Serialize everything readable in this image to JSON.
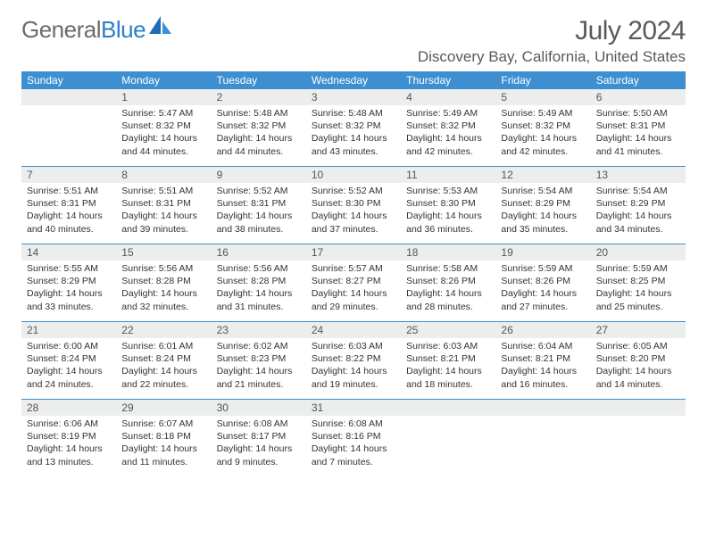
{
  "brand": {
    "part1": "General",
    "part2": "Blue"
  },
  "title": "July 2024",
  "location": "Discovery Bay, California, United States",
  "colors": {
    "header_bg": "#3d8fd1",
    "header_text": "#ffffff",
    "daynum_bg": "#eceded",
    "rule": "#3d8fd1",
    "text": "#333333",
    "title_text": "#5a5a5a",
    "logo_grey": "#6b6b6b",
    "logo_blue": "#2a7fc9"
  },
  "day_names": [
    "Sunday",
    "Monday",
    "Tuesday",
    "Wednesday",
    "Thursday",
    "Friday",
    "Saturday"
  ],
  "weeks": [
    [
      {
        "n": "",
        "sr": "",
        "ss": "",
        "dl": ""
      },
      {
        "n": "1",
        "sr": "5:47 AM",
        "ss": "8:32 PM",
        "dl": "14 hours and 44 minutes."
      },
      {
        "n": "2",
        "sr": "5:48 AM",
        "ss": "8:32 PM",
        "dl": "14 hours and 44 minutes."
      },
      {
        "n": "3",
        "sr": "5:48 AM",
        "ss": "8:32 PM",
        "dl": "14 hours and 43 minutes."
      },
      {
        "n": "4",
        "sr": "5:49 AM",
        "ss": "8:32 PM",
        "dl": "14 hours and 42 minutes."
      },
      {
        "n": "5",
        "sr": "5:49 AM",
        "ss": "8:32 PM",
        "dl": "14 hours and 42 minutes."
      },
      {
        "n": "6",
        "sr": "5:50 AM",
        "ss": "8:31 PM",
        "dl": "14 hours and 41 minutes."
      }
    ],
    [
      {
        "n": "7",
        "sr": "5:51 AM",
        "ss": "8:31 PM",
        "dl": "14 hours and 40 minutes."
      },
      {
        "n": "8",
        "sr": "5:51 AM",
        "ss": "8:31 PM",
        "dl": "14 hours and 39 minutes."
      },
      {
        "n": "9",
        "sr": "5:52 AM",
        "ss": "8:31 PM",
        "dl": "14 hours and 38 minutes."
      },
      {
        "n": "10",
        "sr": "5:52 AM",
        "ss": "8:30 PM",
        "dl": "14 hours and 37 minutes."
      },
      {
        "n": "11",
        "sr": "5:53 AM",
        "ss": "8:30 PM",
        "dl": "14 hours and 36 minutes."
      },
      {
        "n": "12",
        "sr": "5:54 AM",
        "ss": "8:29 PM",
        "dl": "14 hours and 35 minutes."
      },
      {
        "n": "13",
        "sr": "5:54 AM",
        "ss": "8:29 PM",
        "dl": "14 hours and 34 minutes."
      }
    ],
    [
      {
        "n": "14",
        "sr": "5:55 AM",
        "ss": "8:29 PM",
        "dl": "14 hours and 33 minutes."
      },
      {
        "n": "15",
        "sr": "5:56 AM",
        "ss": "8:28 PM",
        "dl": "14 hours and 32 minutes."
      },
      {
        "n": "16",
        "sr": "5:56 AM",
        "ss": "8:28 PM",
        "dl": "14 hours and 31 minutes."
      },
      {
        "n": "17",
        "sr": "5:57 AM",
        "ss": "8:27 PM",
        "dl": "14 hours and 29 minutes."
      },
      {
        "n": "18",
        "sr": "5:58 AM",
        "ss": "8:26 PM",
        "dl": "14 hours and 28 minutes."
      },
      {
        "n": "19",
        "sr": "5:59 AM",
        "ss": "8:26 PM",
        "dl": "14 hours and 27 minutes."
      },
      {
        "n": "20",
        "sr": "5:59 AM",
        "ss": "8:25 PM",
        "dl": "14 hours and 25 minutes."
      }
    ],
    [
      {
        "n": "21",
        "sr": "6:00 AM",
        "ss": "8:24 PM",
        "dl": "14 hours and 24 minutes."
      },
      {
        "n": "22",
        "sr": "6:01 AM",
        "ss": "8:24 PM",
        "dl": "14 hours and 22 minutes."
      },
      {
        "n": "23",
        "sr": "6:02 AM",
        "ss": "8:23 PM",
        "dl": "14 hours and 21 minutes."
      },
      {
        "n": "24",
        "sr": "6:03 AM",
        "ss": "8:22 PM",
        "dl": "14 hours and 19 minutes."
      },
      {
        "n": "25",
        "sr": "6:03 AM",
        "ss": "8:21 PM",
        "dl": "14 hours and 18 minutes."
      },
      {
        "n": "26",
        "sr": "6:04 AM",
        "ss": "8:21 PM",
        "dl": "14 hours and 16 minutes."
      },
      {
        "n": "27",
        "sr": "6:05 AM",
        "ss": "8:20 PM",
        "dl": "14 hours and 14 minutes."
      }
    ],
    [
      {
        "n": "28",
        "sr": "6:06 AM",
        "ss": "8:19 PM",
        "dl": "14 hours and 13 minutes."
      },
      {
        "n": "29",
        "sr": "6:07 AM",
        "ss": "8:18 PM",
        "dl": "14 hours and 11 minutes."
      },
      {
        "n": "30",
        "sr": "6:08 AM",
        "ss": "8:17 PM",
        "dl": "14 hours and 9 minutes."
      },
      {
        "n": "31",
        "sr": "6:08 AM",
        "ss": "8:16 PM",
        "dl": "14 hours and 7 minutes."
      },
      {
        "n": "",
        "sr": "",
        "ss": "",
        "dl": ""
      },
      {
        "n": "",
        "sr": "",
        "ss": "",
        "dl": ""
      },
      {
        "n": "",
        "sr": "",
        "ss": "",
        "dl": ""
      }
    ]
  ],
  "labels": {
    "sunrise": "Sunrise:",
    "sunset": "Sunset:",
    "daylight": "Daylight:"
  }
}
